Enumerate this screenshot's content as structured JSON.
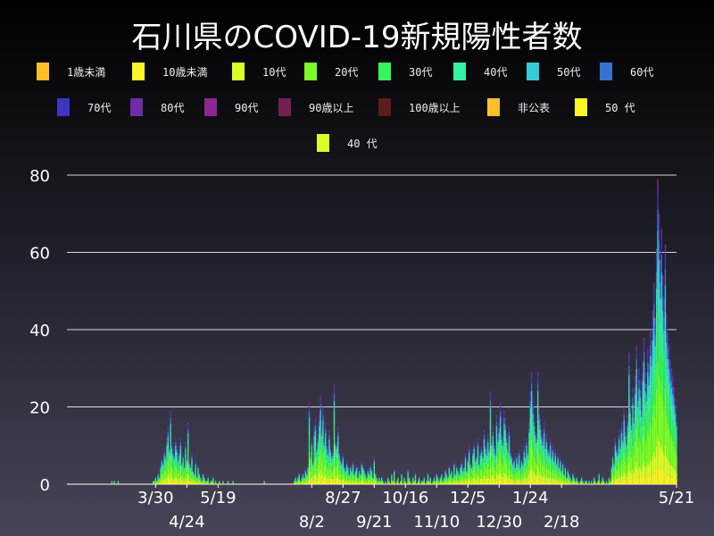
{
  "chart_data": {
    "type": "bar",
    "stacked": true,
    "title": "石川県のCOVID-19新規陽性者数",
    "legend": [
      {
        "label": "1歳未満",
        "color": "#ffbf26"
      },
      {
        "label": "10歳未満",
        "color": "#fff426"
      },
      {
        "label": "10代",
        "color": "#d9ff26"
      },
      {
        "label": "20代",
        "color": "#7cff26"
      },
      {
        "label": "30代",
        "color": "#36f55a"
      },
      {
        "label": "40代",
        "color": "#36f0a8"
      },
      {
        "label": "50代",
        "color": "#36cbdb"
      },
      {
        "label": "60代",
        "color": "#3672d0"
      },
      {
        "label": "70代",
        "color": "#3a36c0"
      },
      {
        "label": "80代",
        "color": "#6e2ca8"
      },
      {
        "label": "90代",
        "color": "#8e2690"
      },
      {
        "label": "90歳以上",
        "color": "#742050"
      },
      {
        "label": "100歳以上",
        "color": "#5e1c1c"
      },
      {
        "label": "非公表",
        "color": "#ffbf26"
      },
      {
        "label": "50 代",
        "color": "#fff426"
      },
      {
        "label": "40 代",
        "color": "#d9ff26"
      }
    ],
    "legend_placement": "top",
    "ylim": [
      0,
      80
    ],
    "yticks": [
      0,
      20,
      40,
      60,
      80
    ],
    "grid": "horizontal",
    "x_first_date": "2020-01-19",
    "x_last_date": "2021-05-21",
    "xticks": [
      {
        "label": "3/30",
        "date": "2020-03-30"
      },
      {
        "label": "4/24",
        "date": "2020-04-24"
      },
      {
        "label": "5/19",
        "date": "2020-05-19"
      },
      {
        "label": "8/2",
        "date": "2020-08-02"
      },
      {
        "label": "8/27",
        "date": "2020-08-27"
      },
      {
        "label": "9/21",
        "date": "2020-09-21"
      },
      {
        "label": "10/16",
        "date": "2020-10-16"
      },
      {
        "label": "11/10",
        "date": "2020-11-10"
      },
      {
        "label": "12/5",
        "date": "2020-12-05"
      },
      {
        "label": "12/30",
        "date": "2020-12-30"
      },
      {
        "label": "1/24",
        "date": "2021-01-24"
      },
      {
        "label": "2/18",
        "date": "2021-02-18"
      },
      {
        "label": "5/21",
        "date": "2021-05-21"
      }
    ],
    "daily_totals": [
      0,
      0,
      0,
      0,
      0,
      0,
      0,
      0,
      0,
      0,
      0,
      0,
      0,
      0,
      0,
      0,
      0,
      0,
      0,
      0,
      0,
      0,
      0,
      0,
      0,
      0,
      0,
      0,
      0,
      0,
      0,
      0,
      0,
      0,
      0,
      0,
      1,
      0,
      1,
      0,
      0,
      1,
      0,
      0,
      0,
      0,
      0,
      0,
      0,
      0,
      0,
      0,
      0,
      0,
      0,
      0,
      0,
      0,
      0,
      0,
      0,
      0,
      0,
      0,
      0,
      0,
      0,
      0,
      0,
      1,
      1,
      2,
      1,
      3,
      2,
      5,
      7,
      6,
      9,
      8,
      12,
      15,
      10,
      19,
      11,
      9,
      8,
      12,
      10,
      7,
      9,
      12,
      6,
      8,
      5,
      11,
      7,
      16,
      6,
      5,
      8,
      4,
      3,
      6,
      2,
      5,
      3,
      2,
      1,
      3,
      2,
      1,
      1,
      2,
      0,
      1,
      1,
      2,
      0,
      1,
      0,
      0,
      1,
      0,
      0,
      1,
      0,
      0,
      0,
      1,
      0,
      0,
      0,
      1,
      0,
      0,
      0,
      0,
      0,
      0,
      0,
      0,
      0,
      0,
      0,
      0,
      0,
      0,
      0,
      0,
      0,
      0,
      0,
      0,
      0,
      0,
      0,
      0,
      1,
      0,
      0,
      0,
      0,
      0,
      0,
      0,
      0,
      0,
      0,
      0,
      0,
      0,
      0,
      0,
      0,
      0,
      0,
      0,
      0,
      0,
      0,
      0,
      1,
      2,
      1,
      2,
      3,
      1,
      2,
      3,
      2,
      4,
      3,
      5,
      21,
      8,
      12,
      6,
      15,
      17,
      10,
      13,
      18,
      23,
      15,
      20,
      12,
      16,
      11,
      9,
      14,
      10,
      8,
      9,
      26,
      12,
      11,
      15,
      9,
      7,
      6,
      8,
      5,
      4,
      6,
      5,
      3,
      5,
      4,
      6,
      3,
      4,
      5,
      2,
      4,
      3,
      6,
      5,
      4,
      3,
      2,
      4,
      3,
      5,
      4,
      2,
      7,
      3,
      2,
      1,
      2,
      1,
      2,
      1,
      0,
      1,
      0,
      2,
      1,
      0,
      3,
      1,
      4,
      0,
      1,
      2,
      0,
      1,
      3,
      0,
      2,
      1,
      0,
      4,
      2,
      1,
      0,
      2,
      1,
      3,
      0,
      1,
      2,
      0,
      1,
      1,
      2,
      0,
      1,
      3,
      1,
      2,
      0,
      1,
      2,
      1,
      3,
      2,
      1,
      2,
      3,
      1,
      2,
      4,
      3,
      2,
      5,
      3,
      4,
      2,
      6,
      3,
      5,
      4,
      3,
      5,
      6,
      4,
      5,
      8,
      4,
      7,
      10,
      6,
      5,
      9,
      11,
      7,
      8,
      12,
      6,
      9,
      10,
      8,
      14,
      11,
      9,
      13,
      10,
      24,
      12,
      15,
      11,
      9,
      18,
      13,
      16,
      21,
      14,
      12,
      19,
      17,
      13,
      10,
      15,
      9,
      8,
      6,
      7,
      5,
      8,
      6,
      9,
      5,
      7,
      6,
      10,
      8,
      12,
      9,
      16,
      24,
      29,
      22,
      18,
      15,
      13,
      29,
      20,
      17,
      14,
      12,
      16,
      11,
      13,
      10,
      9,
      12,
      8,
      10,
      7,
      9,
      6,
      8,
      5,
      7,
      4,
      6,
      3,
      5,
      2,
      4,
      3,
      2,
      1,
      3,
      2,
      1,
      2,
      1,
      0,
      1,
      2,
      1,
      0,
      1,
      1,
      0,
      1,
      0,
      1,
      0,
      2,
      1,
      0,
      1,
      3,
      0,
      1,
      2,
      1,
      0,
      1,
      0,
      2,
      1,
      5,
      8,
      6,
      12,
      10,
      9,
      14,
      11,
      16,
      13,
      20,
      15,
      12,
      18,
      34,
      22,
      17,
      25,
      19,
      28,
      36,
      24,
      30,
      27,
      21,
      32,
      38,
      29,
      26,
      35,
      31,
      40,
      37,
      45,
      52,
      43,
      61,
      79,
      70,
      58,
      66,
      54,
      48,
      62,
      44,
      39,
      36,
      32,
      30,
      28,
      25,
      22,
      18
    ]
  }
}
